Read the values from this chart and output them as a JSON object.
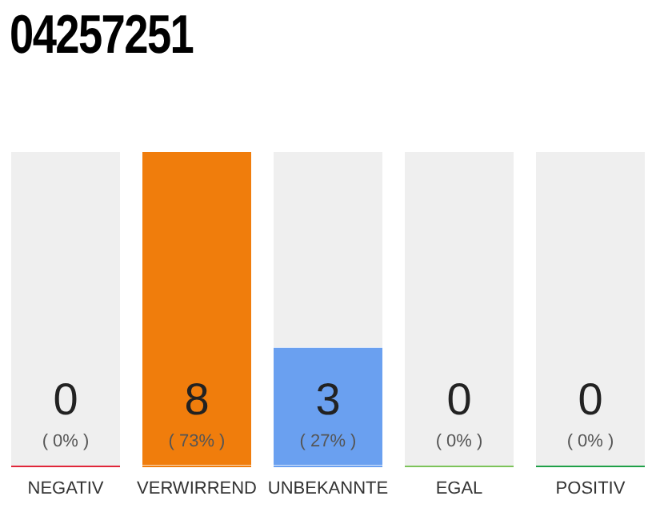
{
  "chart_data": {
    "type": "bar",
    "title": "04257251",
    "categories": [
      "NEGATIV",
      "VERWIRREND",
      "UNBEKANNTE",
      "EGAL",
      "POSITIV"
    ],
    "values": [
      0,
      8,
      3,
      0,
      0
    ],
    "colors": [
      "#e0263a",
      "#f07d0c",
      "#6aa0f0",
      "#7cc35a",
      "#1fa048"
    ],
    "data_labels": true,
    "annotations": [
      "( 0% )",
      "( 73% )",
      "( 27% )",
      "( 0% )",
      "( 0% )"
    ],
    "ylim": [
      0,
      8
    ],
    "tick_labels": "x",
    "grid": false,
    "legend": false
  }
}
